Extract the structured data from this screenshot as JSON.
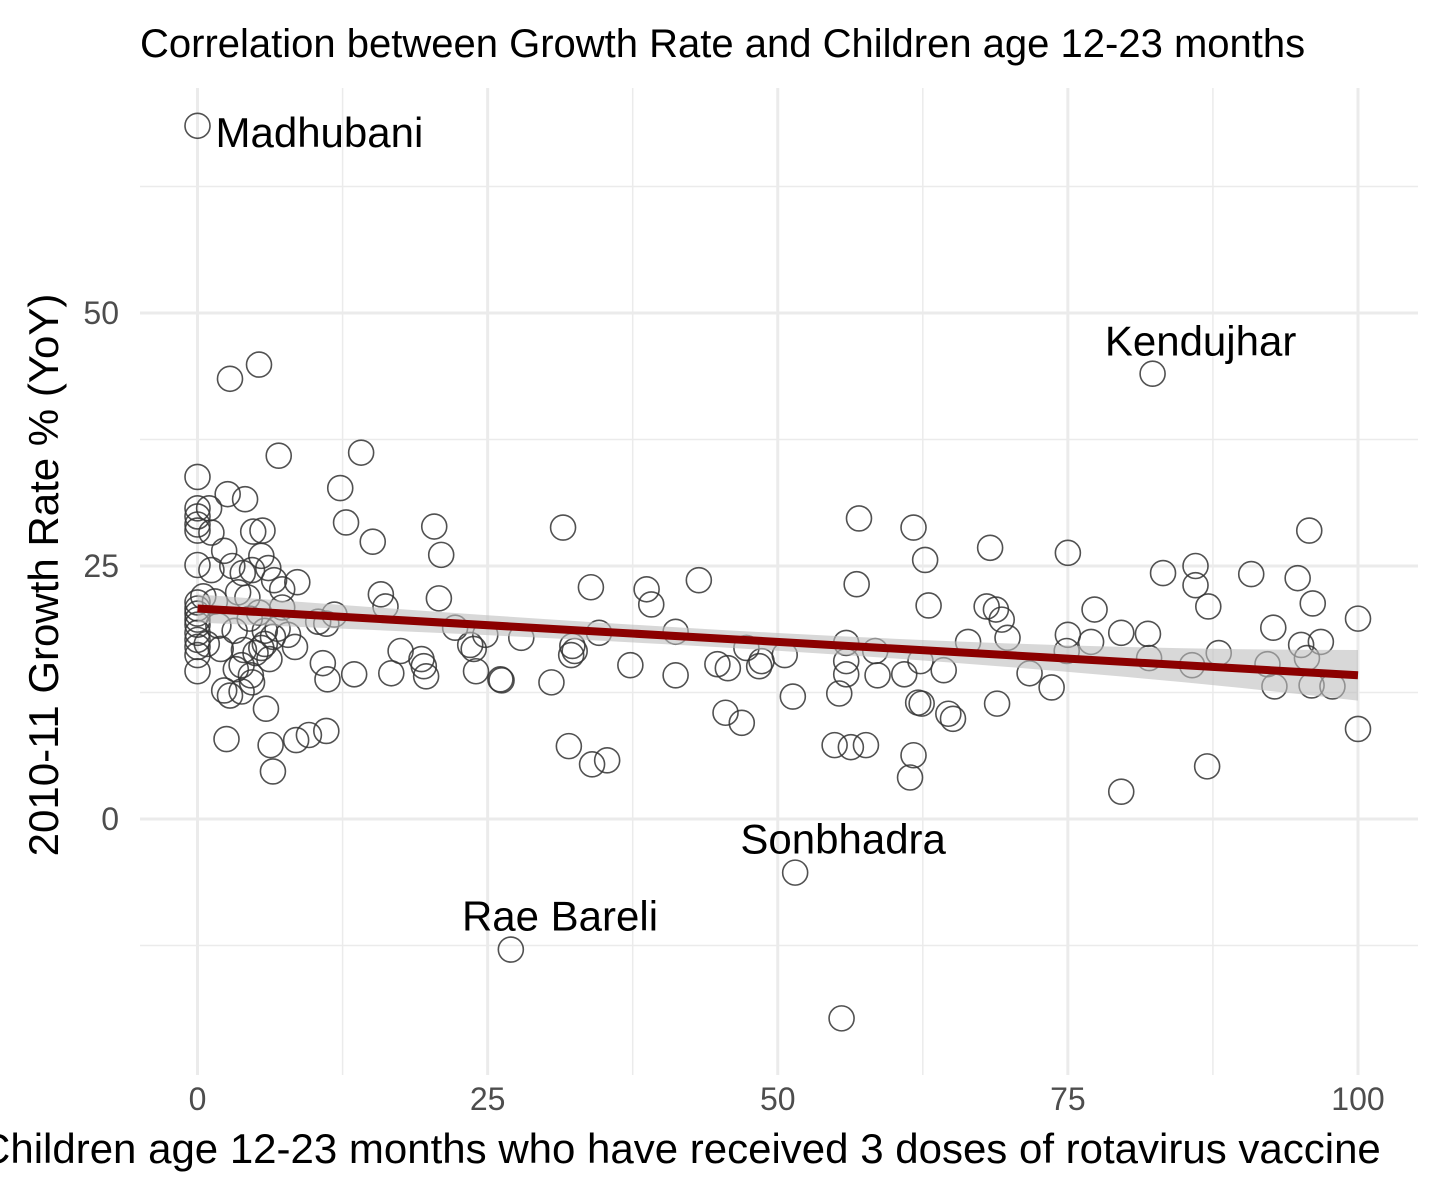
{
  "chart_data": {
    "type": "scatter",
    "title": "Correlation between Growth Rate and Children age 12-23 months",
    "xlabel": "Children age 12-23 months who have received 3 doses of rotavirus vaccine",
    "ylabel": "2010-11 Growth Rate % (YoY)",
    "xlim": [
      -5,
      105
    ],
    "ylim": [
      -25,
      72
    ],
    "x_ticks": [
      0,
      25,
      50,
      75,
      100
    ],
    "y_ticks": [
      0,
      25,
      50
    ],
    "x_tick_labels": [
      "0",
      "25",
      "50",
      "75",
      "100"
    ],
    "y_tick_labels": [
      "0",
      "25",
      "50"
    ],
    "grid": true,
    "legend": "none",
    "colors": {
      "points": "#333333",
      "trend": "#8b0000",
      "band": "#bebebe",
      "grid": "#ebebeb"
    },
    "trend": {
      "x": [
        0,
        100
      ],
      "y": [
        20.8,
        14.2
      ],
      "band_lower": [
        19.4,
        11.7
      ],
      "band_upper": [
        22.2,
        16.7
      ]
    },
    "annotations": [
      {
        "text": "Madhubani",
        "x": 0,
        "y": 68
      },
      {
        "text": "Kendujhar",
        "x": 82.3,
        "y": 43.8
      },
      {
        "text": "Sonbhadra",
        "x": 51.5,
        "y": -5.2
      },
      {
        "text": "Rae Bareli",
        "x": 27.1,
        "y": -12.8
      }
    ],
    "points": [
      [
        0,
        68.5
      ],
      [
        0,
        33.8
      ],
      [
        0,
        30.7
      ],
      [
        0,
        29.9
      ],
      [
        0,
        29.1
      ],
      [
        0,
        28.5
      ],
      [
        0,
        25.1
      ],
      [
        0,
        21.4
      ],
      [
        0,
        20.8
      ],
      [
        0,
        20.3
      ],
      [
        0,
        19.7
      ],
      [
        0,
        19.2
      ],
      [
        0,
        18.4
      ],
      [
        0,
        17.7
      ],
      [
        0,
        17.0
      ],
      [
        0,
        16.2
      ],
      [
        0,
        14.6
      ],
      [
        0.5,
        22.0
      ],
      [
        0.8,
        17.3
      ],
      [
        1.0,
        30.7
      ],
      [
        1.2,
        24.6
      ],
      [
        1.5,
        21.5
      ],
      [
        1.2,
        28.3
      ],
      [
        1.8,
        19.1
      ],
      [
        2.0,
        16.8
      ],
      [
        2.3,
        26.5
      ],
      [
        2.3,
        12.7
      ],
      [
        2.5,
        7.9
      ],
      [
        2.6,
        32.1
      ],
      [
        2.8,
        43.5
      ],
      [
        2.8,
        12.2
      ],
      [
        3.0,
        25.0
      ],
      [
        3.2,
        18.6
      ],
      [
        3.3,
        14.8
      ],
      [
        3.5,
        22.4
      ],
      [
        3.8,
        12.6
      ],
      [
        3.9,
        24.3
      ],
      [
        3.8,
        15.2
      ],
      [
        4.0,
        16.7
      ],
      [
        4.1,
        31.6
      ],
      [
        4.3,
        21.9
      ],
      [
        4.5,
        19.8
      ],
      [
        4.6,
        14.2
      ],
      [
        4.7,
        13.5
      ],
      [
        4.7,
        24.6
      ],
      [
        4.8,
        28.4
      ],
      [
        5.0,
        16.4
      ],
      [
        5.3,
        44.9
      ],
      [
        5.3,
        20.4
      ],
      [
        5.5,
        26.0
      ],
      [
        5.5,
        16.9
      ],
      [
        5.6,
        28.5
      ],
      [
        5.8,
        18.6
      ],
      [
        5.8,
        17.3
      ],
      [
        5.9,
        10.9
      ],
      [
        6.1,
        24.8
      ],
      [
        6.2,
        15.8
      ],
      [
        6.3,
        7.3
      ],
      [
        6.5,
        18.0
      ],
      [
        6.5,
        4.7
      ],
      [
        6.6,
        23.6
      ],
      [
        6.9,
        18.8
      ],
      [
        7.0,
        35.9
      ],
      [
        7.3,
        20.9
      ],
      [
        7.3,
        22.7
      ],
      [
        7.8,
        18.2
      ],
      [
        8.4,
        17.0
      ],
      [
        8.5,
        7.8
      ],
      [
        8.6,
        23.4
      ],
      [
        9.6,
        8.3
      ],
      [
        10.4,
        19.5
      ],
      [
        10.8,
        15.4
      ],
      [
        11.1,
        8.7
      ],
      [
        11.1,
        19.3
      ],
      [
        11.2,
        13.8
      ],
      [
        11.8,
        20.2
      ],
      [
        12.3,
        32.7
      ],
      [
        12.8,
        29.3
      ],
      [
        13.5,
        14.3
      ],
      [
        14.1,
        36.2
      ],
      [
        15.1,
        27.4
      ],
      [
        15.8,
        22.2
      ],
      [
        16.2,
        21.0
      ],
      [
        16.7,
        14.4
      ],
      [
        17.5,
        16.6
      ],
      [
        19.3,
        15.8
      ],
      [
        19.5,
        15.1
      ],
      [
        19.7,
        14.1
      ],
      [
        20.4,
        28.9
      ],
      [
        20.8,
        21.8
      ],
      [
        21.0,
        26.1
      ],
      [
        22.2,
        18.9
      ],
      [
        23.5,
        17.2
      ],
      [
        23.8,
        16.8
      ],
      [
        24.0,
        14.6
      ],
      [
        24.8,
        18.2
      ],
      [
        26.1,
        13.8
      ],
      [
        26.2,
        13.7
      ],
      [
        27.0,
        -12.9
      ],
      [
        27.9,
        17.9
      ],
      [
        30.5,
        13.5
      ],
      [
        31.5,
        28.8
      ],
      [
        32.0,
        7.2
      ],
      [
        32.2,
        16.2
      ],
      [
        32.3,
        17.1
      ],
      [
        32.5,
        16.6
      ],
      [
        33.9,
        22.9
      ],
      [
        34.0,
        5.4
      ],
      [
        34.6,
        18.4
      ],
      [
        35.3,
        5.8
      ],
      [
        37.3,
        15.2
      ],
      [
        38.7,
        22.7
      ],
      [
        39.1,
        21.2
      ],
      [
        41.2,
        18.5
      ],
      [
        41.2,
        14.2
      ],
      [
        43.2,
        23.6
      ],
      [
        44.8,
        15.3
      ],
      [
        45.5,
        10.5
      ],
      [
        45.7,
        14.9
      ],
      [
        46.9,
        9.5
      ],
      [
        47.3,
        16.9
      ],
      [
        48.4,
        15.1
      ],
      [
        48.6,
        15.6
      ],
      [
        50.6,
        16.2
      ],
      [
        51.3,
        12.1
      ],
      [
        51.5,
        -5.3
      ],
      [
        54.9,
        7.3
      ],
      [
        55.3,
        12.4
      ],
      [
        55.9,
        14.3
      ],
      [
        55.9,
        15.6
      ],
      [
        55.9,
        17.4
      ],
      [
        55.5,
        -19.7
      ],
      [
        56.3,
        7.1
      ],
      [
        56.8,
        23.2
      ],
      [
        57.0,
        29.7
      ],
      [
        57.6,
        7.3
      ],
      [
        58.4,
        16.6
      ],
      [
        58.6,
        14.2
      ],
      [
        60.9,
        14.3
      ],
      [
        61.4,
        4.1
      ],
      [
        61.7,
        28.8
      ],
      [
        61.7,
        6.3
      ],
      [
        62.1,
        11.5
      ],
      [
        62.4,
        11.4
      ],
      [
        62.3,
        15.6
      ],
      [
        62.7,
        25.6
      ],
      [
        63.0,
        21.1
      ],
      [
        64.3,
        14.7
      ],
      [
        64.7,
        10.4
      ],
      [
        65.1,
        9.9
      ],
      [
        66.4,
        17.5
      ],
      [
        68.0,
        21.0
      ],
      [
        68.3,
        26.8
      ],
      [
        68.9,
        11.4
      ],
      [
        68.8,
        20.7
      ],
      [
        69.3,
        19.7
      ],
      [
        69.8,
        17.9
      ],
      [
        71.7,
        14.4
      ],
      [
        73.6,
        13.0
      ],
      [
        74.9,
        16.6
      ],
      [
        75.0,
        18.2
      ],
      [
        75.0,
        26.3
      ],
      [
        77.0,
        17.5
      ],
      [
        77.3,
        20.7
      ],
      [
        79.6,
        18.4
      ],
      [
        79.6,
        2.7
      ],
      [
        81.9,
        18.3
      ],
      [
        82.0,
        15.9
      ],
      [
        82.3,
        44.0
      ],
      [
        83.2,
        24.3
      ],
      [
        85.7,
        15.2
      ],
      [
        86.0,
        25.0
      ],
      [
        86.0,
        23.1
      ],
      [
        87.0,
        5.2
      ],
      [
        87.1,
        21.0
      ],
      [
        88.0,
        16.4
      ],
      [
        90.8,
        24.2
      ],
      [
        92.2,
        15.3
      ],
      [
        92.7,
        18.9
      ],
      [
        92.8,
        13.1
      ],
      [
        94.8,
        23.8
      ],
      [
        95.1,
        17.2
      ],
      [
        95.6,
        15.9
      ],
      [
        95.8,
        28.5
      ],
      [
        96.0,
        13.2
      ],
      [
        96.1,
        21.3
      ],
      [
        96.8,
        17.5
      ],
      [
        97.8,
        13.1
      ],
      [
        100,
        19.8
      ],
      [
        100,
        8.9
      ]
    ]
  }
}
